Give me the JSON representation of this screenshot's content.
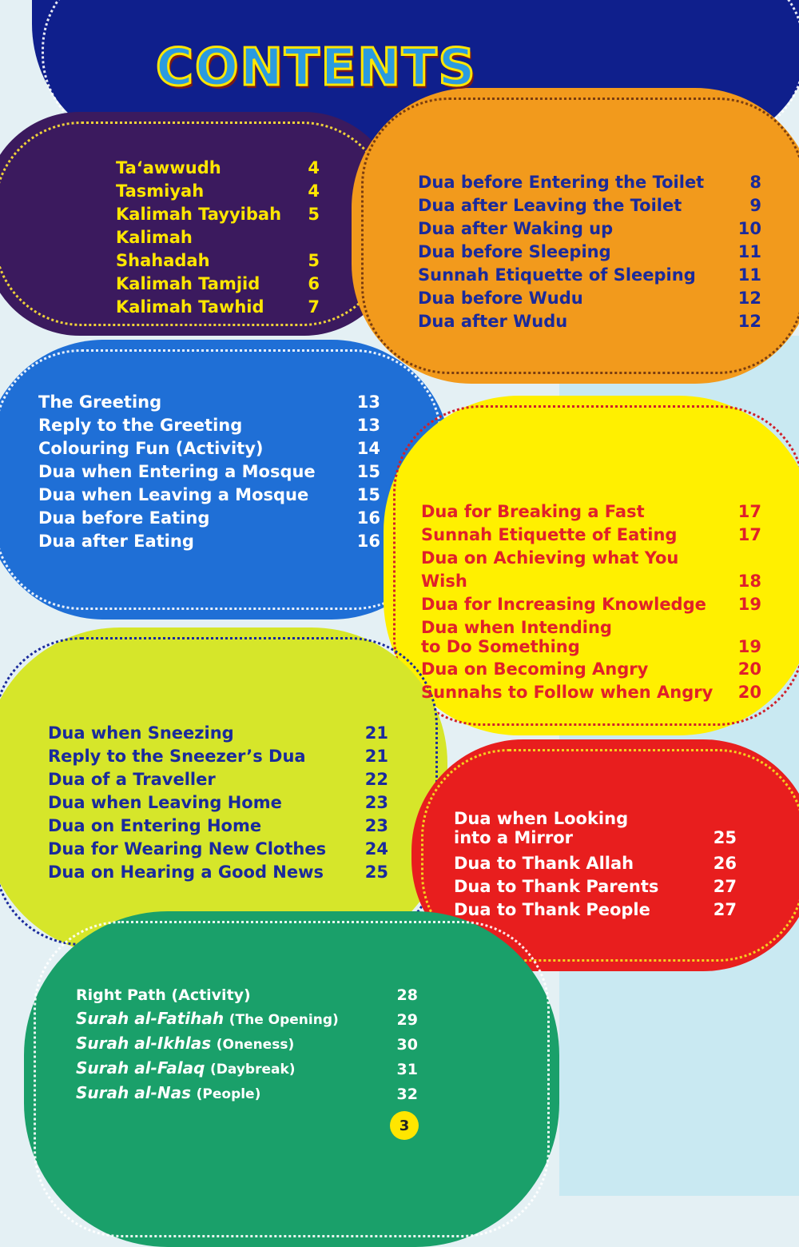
{
  "title": "CONTENTS",
  "page_number": "3",
  "sections": [
    {
      "color": "#3b1a5e",
      "items": [
        {
          "title": "Ta‘awwudh",
          "page": "4"
        },
        {
          "title": "Tasmiyah",
          "page": "4"
        },
        {
          "title": "Kalimah Tayyibah",
          "page": "5"
        },
        {
          "title": "Kalimah Shahadah",
          "page": "5"
        },
        {
          "title": "Kalimah Tamjid",
          "page": "6"
        },
        {
          "title": "Kalimah Tawhid",
          "page": "7"
        }
      ]
    },
    {
      "color": "#f29a1c",
      "items": [
        {
          "title": "Dua before Entering the Toilet",
          "page": "8"
        },
        {
          "title": "Dua after Leaving the Toilet",
          "page": "9"
        },
        {
          "title": "Dua after Waking up",
          "page": "10"
        },
        {
          "title": "Dua before Sleeping",
          "page": "11"
        },
        {
          "title": "Sunnah Etiquette of Sleeping",
          "page": "11"
        },
        {
          "title": "Dua before Wudu",
          "page": "12"
        },
        {
          "title": "Dua after Wudu",
          "page": "12"
        }
      ]
    },
    {
      "color": "#1f6fd6",
      "items": [
        {
          "title": "The Greeting",
          "page": "13"
        },
        {
          "title": "Reply to the Greeting",
          "page": "13"
        },
        {
          "title": "Colouring Fun (Activity)",
          "page": "14"
        },
        {
          "title": "Dua when Entering a Mosque",
          "page": "15"
        },
        {
          "title": "Dua when Leaving a Mosque",
          "page": "15"
        },
        {
          "title": "Dua before Eating",
          "page": "16"
        },
        {
          "title": "Dua after Eating",
          "page": "16"
        }
      ]
    },
    {
      "color": "#fff000",
      "items": [
        {
          "title": "Dua for Breaking a Fast",
          "page": "17"
        },
        {
          "title": "Sunnah Etiquette of Eating",
          "page": "17"
        },
        {
          "title": "Dua on Achieving what You Wish",
          "page": "18"
        },
        {
          "title": "Dua for Increasing Knowledge",
          "page": "19"
        },
        {
          "title": "Dua when Intending\nto Do Something",
          "page": "19"
        },
        {
          "title": "Dua on Becoming Angry",
          "page": "20"
        },
        {
          "title": "Sunnahs to Follow when Angry",
          "page": "20"
        }
      ]
    },
    {
      "color": "#d6e62a",
      "items": [
        {
          "title": "Dua when Sneezing",
          "page": "21"
        },
        {
          "title": "Reply to the Sneezer’s Dua",
          "page": "21"
        },
        {
          "title": "Dua of a Traveller",
          "page": "22"
        },
        {
          "title": "Dua when Leaving Home",
          "page": "23"
        },
        {
          "title": "Dua on Entering Home",
          "page": "23"
        },
        {
          "title": "Dua for Wearing New Clothes",
          "page": "24"
        },
        {
          "title": "Dua on Hearing a Good News",
          "page": "25"
        }
      ]
    },
    {
      "color": "#e81e1e",
      "items": [
        {
          "title": "Dua when Looking\ninto a Mirror",
          "page": "25"
        },
        {
          "title": "Dua to Thank Allah",
          "page": "26"
        },
        {
          "title": "Dua to Thank Parents",
          "page": "27"
        },
        {
          "title": "Dua to Thank People",
          "page": "27"
        }
      ]
    },
    {
      "color": "#1aa06a",
      "items": [
        {
          "title": "Right Path (Activity)",
          "italic": "",
          "page": "28"
        },
        {
          "italic": "Surah al-Fatihah",
          "title": "(The Opening)",
          "page": "29"
        },
        {
          "italic": "Surah al-Ikhlas",
          "title": "(Oneness)",
          "page": "30"
        },
        {
          "italic": "Surah al-Falaq",
          "title": "(Daybreak)",
          "page": "31"
        },
        {
          "italic": "Surah  al-Nas",
          "title": "(People)",
          "page": "32"
        }
      ]
    }
  ]
}
